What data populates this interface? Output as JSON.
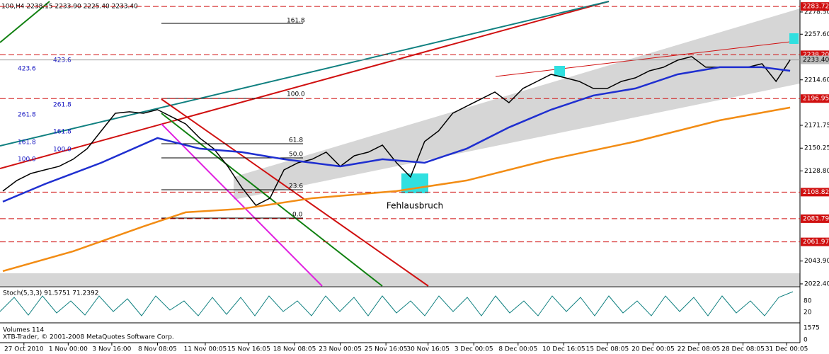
{
  "chart_data": {
    "type": "line",
    "title": "100,H4 2238.15 2233.90 2225.40 2233.40",
    "annotation": "Fehlausbruch",
    "ylim": [
      2019.7,
      2289.8
    ],
    "yticks": [
      {
        "value": 2278.5,
        "label": "2278.50"
      },
      {
        "value": 2257.6,
        "label": "2257.60"
      },
      {
        "value": 2214.6,
        "label": "2214.60"
      },
      {
        "value": 2171.75,
        "label": "2171.75"
      },
      {
        "value": 2150.25,
        "label": "2150.25"
      },
      {
        "value": 2128.8,
        "label": "2128.80"
      },
      {
        "value": 2043.9,
        "label": "2043.90"
      },
      {
        "value": 2022.4,
        "label": "2022.40"
      }
    ],
    "levels": [
      {
        "value": 2283.72,
        "label": "2283.72"
      },
      {
        "value": 2238.2,
        "label": "2238.20"
      },
      {
        "value": 2196.95,
        "label": "2196.95"
      },
      {
        "value": 2108.82,
        "label": "2108.82"
      },
      {
        "value": 2083.79,
        "label": "2083.79"
      },
      {
        "value": 2061.97,
        "label": "2061.97"
      }
    ],
    "current_price": {
      "value": 2233.4,
      "label": "2233.40"
    },
    "xlim": [
      0,
      56.5
    ],
    "xticks": [
      {
        "value": 1.5,
        "label": "27 Oct 2010"
      },
      {
        "value": 4.65,
        "label": "1 Nov 00:00"
      },
      {
        "value": 7.75,
        "label": "3 Nov 16:00"
      },
      {
        "value": 11,
        "label": "8 Nov 08:05"
      },
      {
        "value": 14.4,
        "label": "11 Nov 00:05"
      },
      {
        "value": 17.5,
        "label": "15 Nov 16:05"
      },
      {
        "value": 20.75,
        "label": "18 Nov 08:05"
      },
      {
        "value": 24,
        "label": "23 Nov 00:05"
      },
      {
        "value": 27.25,
        "label": "25 Nov 16:05"
      },
      {
        "value": 30.25,
        "label": "30 Nov 16:05"
      },
      {
        "value": 33.5,
        "label": "3 Dec 00:05"
      },
      {
        "value": 36.65,
        "label": "8 Dec 00:05"
      },
      {
        "value": 39.9,
        "label": "10 Dec 16:05"
      },
      {
        "value": 43,
        "label": "15 Dec 08:05"
      },
      {
        "value": 46.25,
        "label": "20 Dec 00:05"
      },
      {
        "value": 49.5,
        "label": "22 Dec 08:05"
      },
      {
        "value": 52.65,
        "label": "28 Dec 08:05"
      },
      {
        "value": 55.75,
        "label": "31 Dec 00:05"
      }
    ],
    "series": [
      {
        "color": "#000000",
        "x": [
          0,
          1,
          2,
          3,
          4,
          5,
          6,
          7,
          8,
          9,
          10,
          11,
          12,
          13,
          14,
          15,
          16,
          17,
          18,
          19,
          20,
          21,
          22,
          23,
          24,
          25,
          26,
          27,
          28,
          29,
          30,
          31,
          32,
          33,
          34,
          35,
          36,
          37,
          38,
          39,
          40,
          41,
          42,
          43,
          44,
          45,
          46,
          47,
          48,
          49,
          50,
          51,
          52,
          53,
          54,
          55,
          56
        ],
        "values": [
          2109.8,
          2119.8,
          2126.4,
          2129.8,
          2133.1,
          2139.8,
          2149.8,
          2166.5,
          2183.1,
          2184.5,
          2183.1,
          2186.5,
          2179.8,
          2173.1,
          2159.8,
          2149.8,
          2133.1,
          2113.1,
          2096.4,
          2103.1,
          2129.8,
          2136.5,
          2139.8,
          2146.5,
          2133.1,
          2143.1,
          2146.5,
          2153.1,
          2136.5,
          2123.1,
          2156.5,
          2166.5,
          2183.1,
          2189.8,
          2196.5,
          2203.1,
          2193.1,
          2206.5,
          2213.1,
          2219.8,
          2216.5,
          2213.1,
          2206.5,
          2206.5,
          2213.1,
          2216.5,
          2223.1,
          2226.5,
          2233.1,
          2236.5,
          2226.5,
          2226.5,
          2226.5,
          2226.5,
          2229.8,
          2213.1,
          2233.4
        ]
      },
      {
        "color": "#1f2fd0",
        "x": [
          0,
          3,
          7,
          11,
          14,
          17,
          20,
          24,
          27,
          30,
          33,
          36,
          39,
          42,
          45,
          48,
          51,
          54,
          56
        ],
        "values": [
          2099.8,
          2116.5,
          2136.5,
          2159.8,
          2149.8,
          2146.5,
          2139.8,
          2133.1,
          2139.8,
          2136.5,
          2149.8,
          2169.8,
          2186.5,
          2199.8,
          2206.5,
          2219.8,
          2226.5,
          2226.5,
          2223.1
        ]
      },
      {
        "color": "#f28c14",
        "x": [
          0,
          5,
          10,
          13,
          17,
          22,
          28,
          33,
          39,
          45,
          51,
          56
        ],
        "values": [
          2034.4,
          2053.1,
          2076.5,
          2089.8,
          2093.1,
          2103.1,
          2109.8,
          2119.8,
          2139.8,
          2156.5,
          2176.5,
          2188.5
        ]
      }
    ],
    "fib_labels": [
      "161.8",
      "100.0",
      "61.8",
      "50.0",
      "23.6",
      "0.0"
    ],
    "fib_ext_labels": [
      "423.6",
      "423.6",
      "261.8",
      "261.8",
      "161.8",
      "161.8",
      "100.0",
      "100.0"
    ],
    "stoch_label": "Stoch(5,3,3) 91.5751 71.2392",
    "stoch_ticks": [
      "80",
      "20"
    ],
    "volume_label": "Volumes 114",
    "copyright": "XTB-Trader, © 2001-2008 MetaQuotes Software Corp.",
    "volume_ticks": [
      "1575",
      "0"
    ]
  }
}
